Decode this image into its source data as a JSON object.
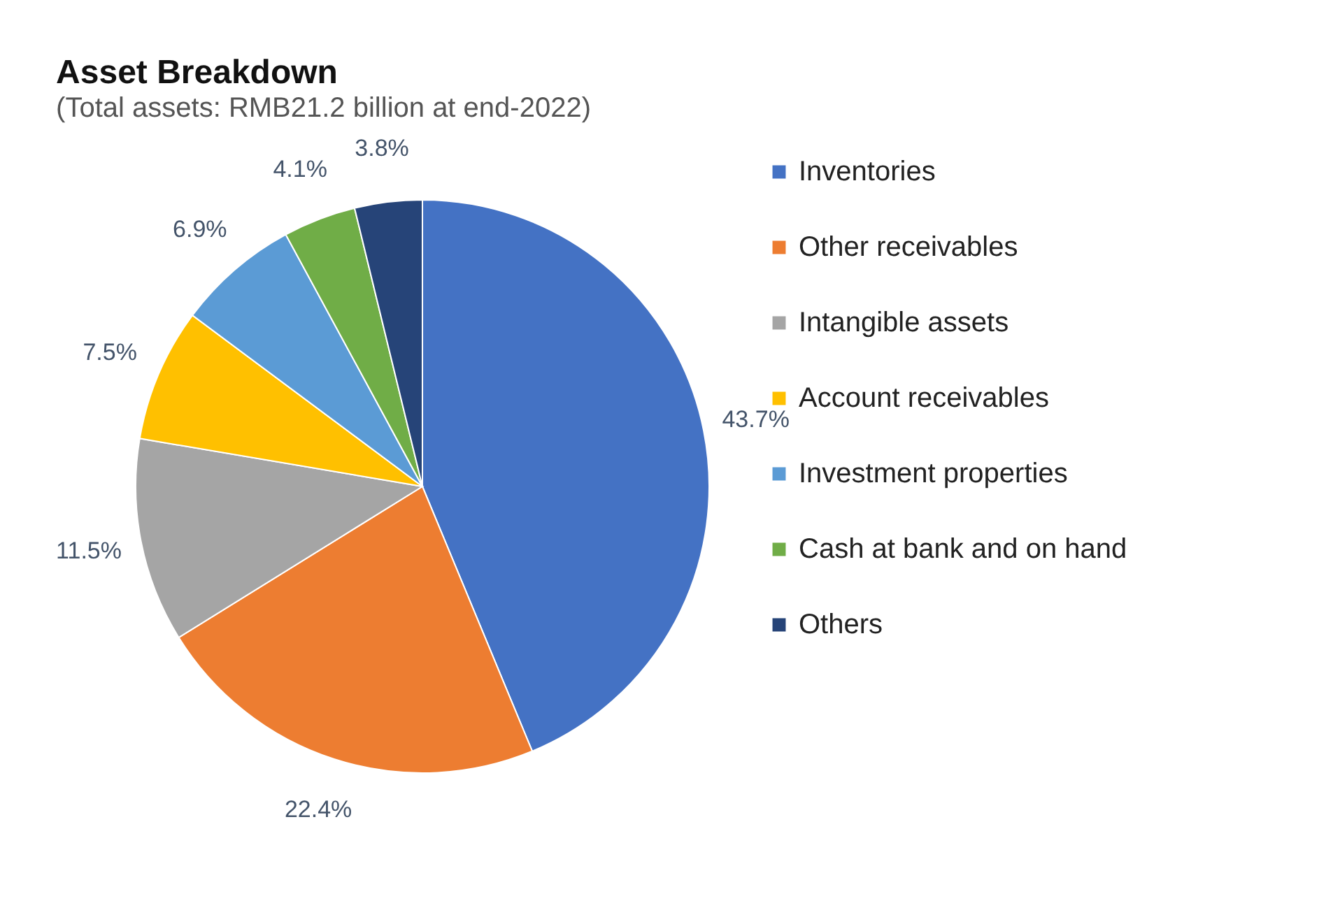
{
  "chart_data": {
    "type": "pie",
    "title": "Asset Breakdown",
    "subtitle": "(Total assets: RMB21.2 billion at end-2022)",
    "categories": [
      "Inventories",
      "Other receivables",
      "Intangible assets",
      "Account receivables",
      "Investment properties",
      "Cash at bank and on hand",
      "Others"
    ],
    "values": [
      43.7,
      22.4,
      11.5,
      7.5,
      6.9,
      4.1,
      3.8
    ],
    "value_labels": [
      "43.7%",
      "22.4%",
      "11.5%",
      "7.5%",
      "6.9%",
      "4.1%",
      "3.8%"
    ],
    "colors": [
      "#4472c4",
      "#ed7d31",
      "#a5a5a5",
      "#ffc000",
      "#5b9bd5",
      "#70ad47",
      "#264478"
    ],
    "legend": "right"
  }
}
